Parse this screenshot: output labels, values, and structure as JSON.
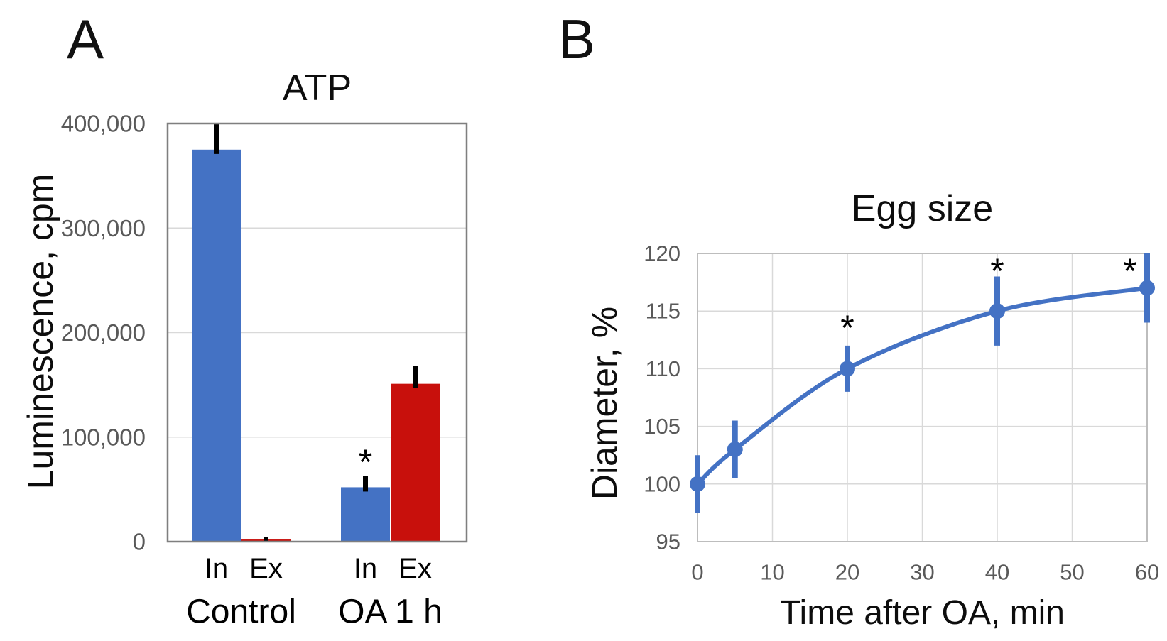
{
  "panels": {
    "a": {
      "label": "A"
    },
    "b": {
      "label": "B"
    }
  },
  "colors": {
    "blue": "#4472C4",
    "red": "#C8100C",
    "grid": "#D9D9D9",
    "border_a": "#7F7F7F",
    "border_b": "#BDBDBD",
    "tick_text": "#595959",
    "error_bar_a": "#000000",
    "text": "#000000"
  },
  "chart_data": [
    {
      "id": "atp-bar-chart",
      "type": "bar",
      "title": "ATP",
      "ylabel": "Luminescence, cpm",
      "ylim": [
        0,
        400000
      ],
      "grid": true,
      "legend": "none",
      "yticks": {
        "values": [
          0,
          100000,
          200000,
          300000,
          400000
        ],
        "labels": [
          "0",
          "100,000",
          "200,000",
          "300,000",
          "400,000"
        ]
      },
      "significance_marker": "*",
      "groups": [
        {
          "label": "Control",
          "bars": [
            {
              "label": "In",
              "value": 375000,
              "error_up": 25000,
              "color": "blue",
              "sig": false
            },
            {
              "label": "Ex",
              "value": 2000,
              "error_up": 2500,
              "color": "red",
              "sig": false
            }
          ]
        },
        {
          "label": "OA 1 h",
          "bars": [
            {
              "label": "In",
              "value": 52000,
              "error_up": 11000,
              "color": "blue",
              "sig": true
            },
            {
              "label": "Ex",
              "value": 151000,
              "error_up": 17000,
              "color": "red",
              "sig": false
            }
          ]
        }
      ]
    },
    {
      "id": "egg-size-line-chart",
      "type": "line",
      "title": "Egg size",
      "xlabel": "Time after OA, min",
      "ylabel": "Diameter, %",
      "xlim": [
        0,
        60
      ],
      "ylim": [
        95,
        120
      ],
      "grid": true,
      "legend": "none",
      "xticks": [
        0,
        10,
        20,
        30,
        40,
        50,
        60
      ],
      "yticks": [
        95,
        100,
        105,
        110,
        115,
        120
      ],
      "significance_marker": "*",
      "series": [
        {
          "name": "egg-diameter",
          "color": "blue",
          "points": [
            {
              "x": 0,
              "y": 100,
              "error": 2.5,
              "sig": false
            },
            {
              "x": 5,
              "y": 103,
              "error": 2.5,
              "sig": false
            },
            {
              "x": 20,
              "y": 110,
              "error": 2.0,
              "sig": true
            },
            {
              "x": 40,
              "y": 115,
              "error": 3.0,
              "sig": true
            },
            {
              "x": 60,
              "y": 117,
              "error": 3.0,
              "sig": true
            }
          ]
        }
      ]
    }
  ]
}
